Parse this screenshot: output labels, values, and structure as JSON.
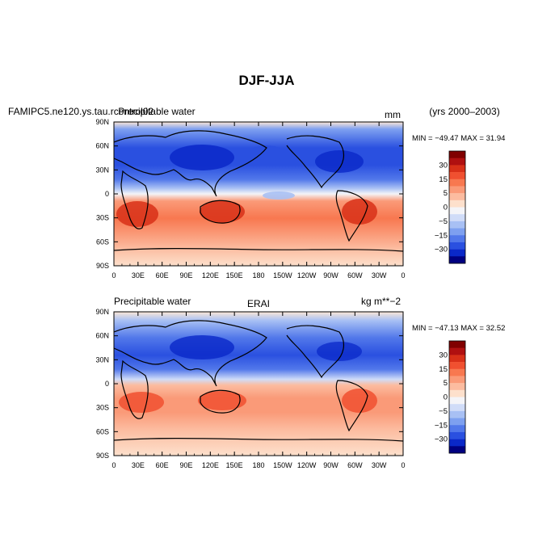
{
  "figure": {
    "title": "DJF-JJA",
    "years": "(yrs 2000–2003)"
  },
  "panels": [
    {
      "left_label": "FAMIPC5.ne120.ys.tau.rcontrol02",
      "center_label": "Precipitable water",
      "right_label": "mm",
      "stats": "MIN = −49.47 MAX =  31.94"
    },
    {
      "left_label": "Precipitable water",
      "center_label": "ERAI",
      "right_label": "kg m**−2",
      "stats": "MIN = −47.13 MAX =  32.52"
    }
  ],
  "axes": {
    "lon_ticks": [
      "0",
      "30E",
      "60E",
      "90E",
      "120E",
      "150E",
      "180",
      "150W",
      "120W",
      "90W",
      "60W",
      "30W",
      "0"
    ],
    "lat_ticks": [
      "90N",
      "60N",
      "30N",
      "0",
      "30S",
      "60S",
      "90S"
    ]
  },
  "colorbar": {
    "labels": [
      "30",
      "15",
      "5",
      "0",
      "−5",
      "−15",
      "−30"
    ],
    "colors": [
      "#800000",
      "#b01010",
      "#d83018",
      "#f05030",
      "#f87850",
      "#fa9a78",
      "#fcbca0",
      "#fde0cc",
      "#f4f4f8",
      "#d0dcf8",
      "#a8c0f4",
      "#7ea0f0",
      "#5278ea",
      "#2a50e0",
      "#0a28c8",
      "#000080"
    ]
  }
}
